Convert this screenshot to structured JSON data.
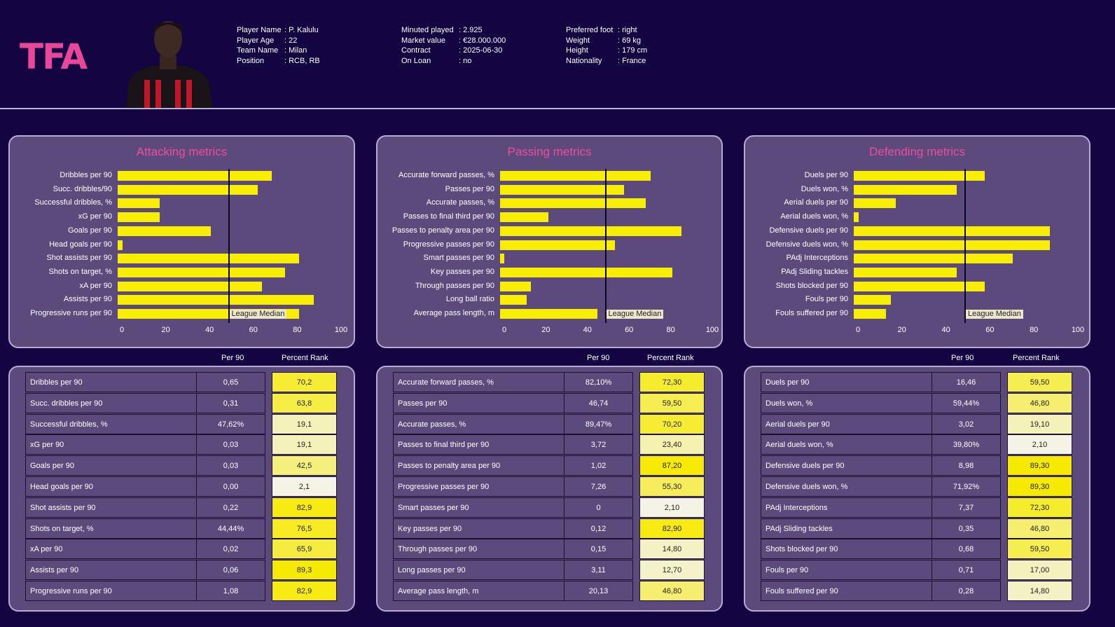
{
  "logo_text": "TFA",
  "player": {
    "col1": [
      [
        "Player Name",
        ": P. Kalulu"
      ],
      [
        "Player Age",
        ": 22"
      ],
      [
        "Team Name",
        ": Milan"
      ],
      [
        "Position",
        ": RCB, RB"
      ]
    ],
    "col2": [
      [
        "Minuted played",
        ": 2.925"
      ],
      [
        "Market value",
        ": €28.000.000"
      ],
      [
        "Contract",
        ": 2025-06-30"
      ],
      [
        "On Loan",
        ": no"
      ]
    ],
    "col3": [
      [
        "Preferred foot",
        ": right"
      ],
      [
        "Weight",
        ": 69 kg"
      ],
      [
        "Height",
        ": 179 cm"
      ],
      [
        "Nationality",
        ": France"
      ]
    ]
  },
  "colors": {
    "background": "#140542",
    "panel": "#5d4a7c",
    "title": "#ee4c9e",
    "bar": "#f7ee00"
  },
  "median_label": "League Median",
  "table_headers": {
    "per90": "Per 90",
    "rank": "Percent Rank"
  },
  "chart_data": [
    {
      "type": "bar",
      "orientation": "horizontal",
      "title": "Attacking metrics",
      "xlim": [
        0,
        100
      ],
      "ticks": [
        "0",
        "20",
        "40",
        "60",
        "80",
        "100"
      ],
      "median": 50,
      "categories": [
        "Dribbles per 90",
        "Succ. dribbles/90",
        "Successful dribbles, %",
        "xG per 90",
        "Goals per 90",
        "Head goals per 90",
        "Shot assists per 90",
        "Shots on target, %",
        "xA per 90",
        "Assists per 90",
        "Progressive runs per 90"
      ],
      "values": [
        70.2,
        63.8,
        19.1,
        19.1,
        42.5,
        2.1,
        82.9,
        76.5,
        65.9,
        89.3,
        82.9
      ]
    },
    {
      "type": "bar",
      "orientation": "horizontal",
      "title": "Passing metrics",
      "xlim": [
        0,
        100
      ],
      "ticks": [
        "0",
        "20",
        "40",
        "60",
        "80",
        "100"
      ],
      "median": 50,
      "categories": [
        "Accurate forward passes, %",
        "Passes per 90",
        "Accurate passes, %",
        "Passes to final third per 90",
        "Passes to penalty area per 90",
        "Progressive passes per 90",
        "Smart passes per 90",
        "Key passes per 90",
        "Through passes per 90",
        "Long ball ratio",
        "Average pass length, m"
      ],
      "values": [
        72.3,
        59.5,
        70.2,
        23.4,
        87.2,
        55.3,
        2.1,
        82.9,
        14.8,
        12.7,
        46.8
      ]
    },
    {
      "type": "bar",
      "orientation": "horizontal",
      "title": "Defending metrics",
      "xlim": [
        0,
        100
      ],
      "ticks": [
        "0",
        "20",
        "40",
        "60",
        "80",
        "100"
      ],
      "median": 50,
      "categories": [
        "Duels per 90",
        "Duels won, %",
        "Aerial duels per 90",
        "Aerial duels won, %",
        "Defensive duels per 90",
        "Defensive duels won, %",
        "PAdj Interceptions",
        "PAdj Sliding tackles",
        "Shots blocked per 90",
        "Fouls per 90",
        "Fouls suffered per 90"
      ],
      "values": [
        59.5,
        46.8,
        19.1,
        2.1,
        89.3,
        89.3,
        72.3,
        46.8,
        59.5,
        17.0,
        14.8
      ]
    }
  ],
  "tables": [
    {
      "rows": [
        [
          "Dribbles per 90",
          "0,65",
          "70,2"
        ],
        [
          "Succ. dribbles per 90",
          "0,31",
          "63,8"
        ],
        [
          "Successful dribbles, %",
          "47,62%",
          "19,1"
        ],
        [
          "xG per 90",
          "0,03",
          "19,1"
        ],
        [
          "Goals per 90",
          "0,03",
          "42,5"
        ],
        [
          "Head goals per 90",
          "0,00",
          "2,1"
        ],
        [
          "Shot assists per 90",
          "0,22",
          "82,9"
        ],
        [
          "Shots on target, %",
          "44,44%",
          "76,5"
        ],
        [
          "xA per 90",
          "0,02",
          "65,9"
        ],
        [
          "Assists per 90",
          "0,06",
          "89,3"
        ],
        [
          "Progressive runs per 90",
          "1,08",
          "82,9"
        ]
      ]
    },
    {
      "rows": [
        [
          "Accurate forward passes, %",
          "82,10%",
          "72,30"
        ],
        [
          "Passes per 90",
          "46,74",
          "59,50"
        ],
        [
          "Accurate passes, %",
          "89,47%",
          "70,20"
        ],
        [
          "Passes to final third per 90",
          "3,72",
          "23,40"
        ],
        [
          "Passes to penalty area per 90",
          "1,02",
          "87,20"
        ],
        [
          "Progressive passes per 90",
          "7,26",
          "55,30"
        ],
        [
          "Smart passes per 90",
          "0",
          "2,10"
        ],
        [
          "Key passes per 90",
          "0,12",
          "82,90"
        ],
        [
          "Through passes per 90",
          "0,15",
          "14,80"
        ],
        [
          "Long passes per 90",
          "3,11",
          "12,70"
        ],
        [
          "Average pass length, m",
          "20,13",
          "46,80"
        ]
      ]
    },
    {
      "rows": [
        [
          "Duels per 90",
          "16,46",
          "59,50"
        ],
        [
          "Duels won, %",
          "59,44%",
          "46,80"
        ],
        [
          "Aerial duels per 90",
          "3,02",
          "19,10"
        ],
        [
          "Aerial duels won, %",
          "39,80%",
          "2,10"
        ],
        [
          "Defensive duels per 90",
          "8,98",
          "89,30"
        ],
        [
          "Defensive duels won, %",
          "71,92%",
          "89,30"
        ],
        [
          "PAdj Interceptions",
          "7,37",
          "72,30"
        ],
        [
          "PAdj Sliding tackles",
          "0,35",
          "46,80"
        ],
        [
          "Shots blocked per 90",
          "0,68",
          "59,50"
        ],
        [
          "Fouls per 90",
          "0,71",
          "17,00"
        ],
        [
          "Fouls suffered per 90",
          "0,28",
          "14,80"
        ]
      ]
    }
  ]
}
